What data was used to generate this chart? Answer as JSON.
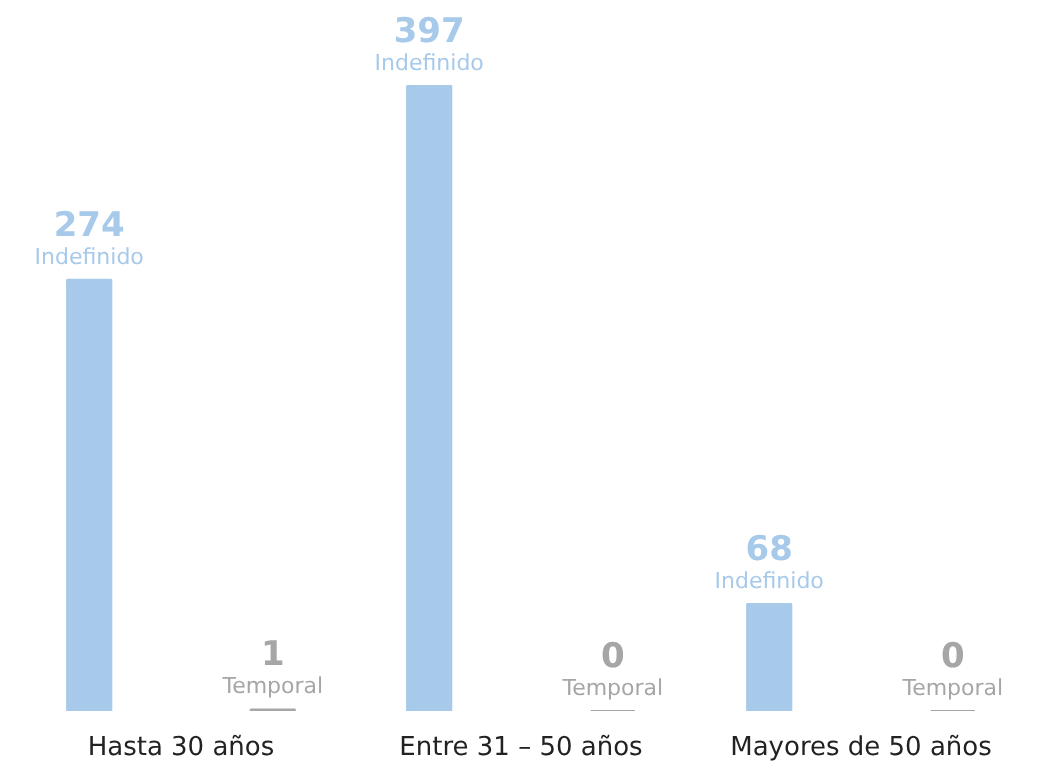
{
  "chart_data": {
    "type": "bar",
    "categories": [
      "Hasta 30 años",
      "Entre 31 – 50 años",
      "Mayores de 50 años"
    ],
    "series": [
      {
        "name": "Indefinido",
        "color": "#a7c9ea",
        "values": [
          274,
          397,
          68
        ]
      },
      {
        "name": "Temporal",
        "color": "#a6a6a6",
        "values": [
          1,
          0,
          0
        ]
      }
    ],
    "data_labels": true
  }
}
